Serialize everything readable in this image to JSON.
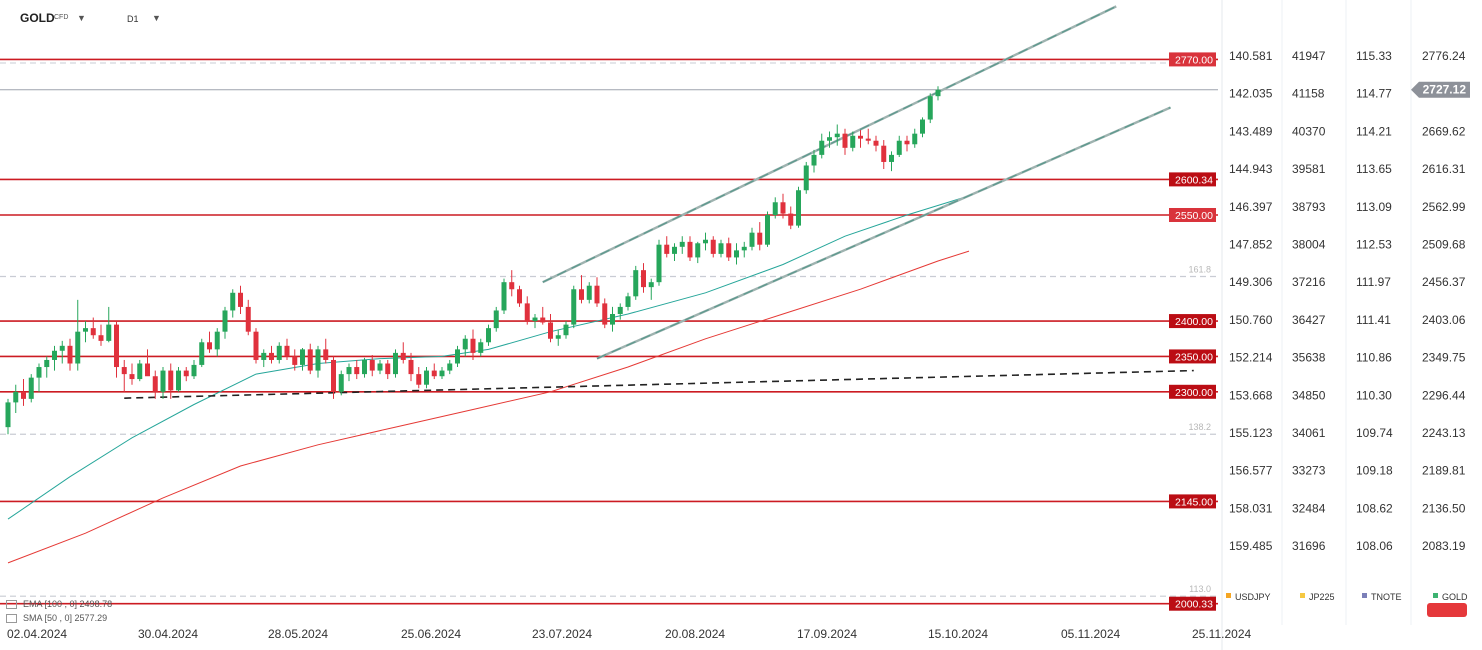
{
  "header": {
    "symbol": "GOLD",
    "symbol_sub": "CFD",
    "timeframe": "D1",
    "dropdown_icon": "chevron-down-icon"
  },
  "indicators": [
    {
      "label": "EMA [100 , 0]",
      "value": "2498.78",
      "color": "#e53935"
    },
    {
      "label": "SMA [50 , 0]",
      "value": "2577.29",
      "color": "#26a69a"
    }
  ],
  "price_axis": {
    "usdjpy": [
      "140.581",
      "142.035",
      "143.489",
      "144.943",
      "146.397",
      "147.852",
      "149.306",
      "150.760",
      "152.214",
      "153.668",
      "155.123",
      "156.577",
      "158.031",
      "159.485"
    ],
    "jp225": [
      "41947",
      "41158",
      "40370",
      "39581",
      "38793",
      "38004",
      "37216",
      "36427",
      "35638",
      "34850",
      "34061",
      "33273",
      "32484",
      "31696"
    ],
    "tnote": [
      "115.33",
      "114.77",
      "114.21",
      "113.65",
      "113.09",
      "112.53",
      "111.97",
      "111.41",
      "110.86",
      "110.30",
      "109.74",
      "109.18",
      "108.62",
      "108.06"
    ],
    "gold": [
      "2776.24",
      "2722.93",
      "2669.62",
      "2616.31",
      "2562.99",
      "2509.68",
      "2456.37",
      "2403.06",
      "2349.75",
      "2296.44",
      "2243.13",
      "2189.81",
      "2136.50",
      "2083.19"
    ],
    "current_price": "2727.12"
  },
  "levels": [
    {
      "label": "2770.00",
      "value": 2770
    },
    {
      "label": "2600.34",
      "value": 2600.34
    },
    {
      "label": "2550.00",
      "value": 2550
    },
    {
      "label": "2400.00",
      "value": 2400
    },
    {
      "label": "2350.00",
      "value": 2350
    },
    {
      "label": "2300.00",
      "value": 2300
    },
    {
      "label": "2145.00",
      "value": 2145
    },
    {
      "label": "2000.33",
      "value": 2000.33
    }
  ],
  "fib_levels": [
    {
      "label": "161.8",
      "value": 2463
    },
    {
      "label": "138.2",
      "value": 2240
    },
    {
      "label": "113.0",
      "value": 2011
    }
  ],
  "legend": [
    {
      "name": "USDJPY",
      "color": "#f5a623"
    },
    {
      "name": "JP225",
      "color": "#f5c842"
    },
    {
      "name": "TNOTE",
      "color": "#7b7fb8"
    },
    {
      "name": "GOLD",
      "color": "#3cb371"
    }
  ],
  "chart_data": {
    "type": "candlestick",
    "symbol": "GOLD",
    "timeframe": "D1",
    "x_tick_labels": [
      "02.04.2024",
      "30.04.2024",
      "28.05.2024",
      "25.06.2024",
      "23.07.2024",
      "20.08.2024",
      "17.09.2024",
      "15.10.2024",
      "05.11.2024",
      "25.11.2024"
    ],
    "y_range": [
      1990,
      2795
    ],
    "up_color": "#26a65b",
    "down_color": "#e0313d",
    "ohlc": [
      [
        2250,
        2290,
        2240,
        2285
      ],
      [
        2285,
        2310,
        2270,
        2300
      ],
      [
        2300,
        2318,
        2280,
        2290
      ],
      [
        2290,
        2325,
        2285,
        2320
      ],
      [
        2320,
        2340,
        2300,
        2335
      ],
      [
        2335,
        2350,
        2320,
        2345
      ],
      [
        2345,
        2365,
        2330,
        2358
      ],
      [
        2358,
        2372,
        2340,
        2365
      ],
      [
        2365,
        2375,
        2330,
        2340
      ],
      [
        2340,
        2430,
        2330,
        2385
      ],
      [
        2385,
        2400,
        2370,
        2390
      ],
      [
        2390,
        2405,
        2375,
        2380
      ],
      [
        2380,
        2395,
        2365,
        2372
      ],
      [
        2372,
        2420,
        2370,
        2395
      ],
      [
        2395,
        2400,
        2320,
        2335
      ],
      [
        2335,
        2345,
        2300,
        2325
      ],
      [
        2325,
        2340,
        2310,
        2318
      ],
      [
        2318,
        2345,
        2315,
        2340
      ],
      [
        2340,
        2360,
        2325,
        2322
      ],
      [
        2322,
        2330,
        2290,
        2300
      ],
      [
        2300,
        2335,
        2290,
        2330
      ],
      [
        2330,
        2340,
        2290,
        2302
      ],
      [
        2302,
        2335,
        2300,
        2330
      ],
      [
        2330,
        2335,
        2315,
        2322
      ],
      [
        2322,
        2345,
        2318,
        2338
      ],
      [
        2338,
        2375,
        2335,
        2370
      ],
      [
        2370,
        2385,
        2355,
        2360
      ],
      [
        2360,
        2390,
        2350,
        2385
      ],
      [
        2385,
        2420,
        2375,
        2415
      ],
      [
        2415,
        2445,
        2405,
        2440
      ],
      [
        2440,
        2450,
        2410,
        2420
      ],
      [
        2420,
        2430,
        2380,
        2385
      ],
      [
        2385,
        2390,
        2340,
        2345
      ],
      [
        2345,
        2360,
        2335,
        2355
      ],
      [
        2355,
        2365,
        2340,
        2345
      ],
      [
        2345,
        2370,
        2340,
        2365
      ],
      [
        2365,
        2375,
        2345,
        2350
      ],
      [
        2350,
        2360,
        2330,
        2338
      ],
      [
        2338,
        2362,
        2330,
        2360
      ],
      [
        2360,
        2368,
        2325,
        2330
      ],
      [
        2330,
        2365,
        2320,
        2360
      ],
      [
        2360,
        2375,
        2340,
        2345
      ],
      [
        2345,
        2350,
        2290,
        2300
      ],
      [
        2300,
        2330,
        2295,
        2325
      ],
      [
        2325,
        2340,
        2315,
        2335
      ],
      [
        2335,
        2345,
        2318,
        2325
      ],
      [
        2325,
        2348,
        2320,
        2345
      ],
      [
        2345,
        2352,
        2322,
        2330
      ],
      [
        2330,
        2345,
        2325,
        2340
      ],
      [
        2340,
        2345,
        2318,
        2325
      ],
      [
        2325,
        2360,
        2320,
        2355
      ],
      [
        2355,
        2370,
        2340,
        2345
      ],
      [
        2345,
        2355,
        2315,
        2325
      ],
      [
        2325,
        2335,
        2305,
        2310
      ],
      [
        2310,
        2335,
        2305,
        2330
      ],
      [
        2330,
        2340,
        2318,
        2322
      ],
      [
        2322,
        2335,
        2318,
        2330
      ],
      [
        2330,
        2345,
        2325,
        2340
      ],
      [
        2340,
        2365,
        2335,
        2360
      ],
      [
        2360,
        2380,
        2350,
        2375
      ],
      [
        2375,
        2388,
        2345,
        2355
      ],
      [
        2355,
        2375,
        2350,
        2370
      ],
      [
        2370,
        2395,
        2365,
        2390
      ],
      [
        2390,
        2420,
        2385,
        2415
      ],
      [
        2415,
        2460,
        2410,
        2455
      ],
      [
        2455,
        2472,
        2435,
        2445
      ],
      [
        2445,
        2450,
        2420,
        2425
      ],
      [
        2425,
        2435,
        2395,
        2400
      ],
      [
        2400,
        2410,
        2390,
        2405
      ],
      [
        2405,
        2420,
        2395,
        2398
      ],
      [
        2398,
        2410,
        2370,
        2375
      ],
      [
        2375,
        2388,
        2365,
        2380
      ],
      [
        2380,
        2400,
        2375,
        2395
      ],
      [
        2395,
        2450,
        2390,
        2445
      ],
      [
        2445,
        2465,
        2425,
        2430
      ],
      [
        2430,
        2455,
        2425,
        2450
      ],
      [
        2450,
        2462,
        2420,
        2425
      ],
      [
        2425,
        2432,
        2390,
        2395
      ],
      [
        2395,
        2420,
        2385,
        2410
      ],
      [
        2410,
        2425,
        2402,
        2420
      ],
      [
        2420,
        2440,
        2415,
        2435
      ],
      [
        2435,
        2478,
        2430,
        2472
      ],
      [
        2472,
        2482,
        2440,
        2448
      ],
      [
        2448,
        2460,
        2430,
        2455
      ],
      [
        2455,
        2515,
        2450,
        2508
      ],
      [
        2508,
        2520,
        2490,
        2495
      ],
      [
        2495,
        2510,
        2485,
        2505
      ],
      [
        2505,
        2520,
        2495,
        2512
      ],
      [
        2512,
        2520,
        2485,
        2490
      ],
      [
        2490,
        2512,
        2482,
        2510
      ],
      [
        2510,
        2525,
        2500,
        2515
      ],
      [
        2515,
        2520,
        2490,
        2495
      ],
      [
        2495,
        2515,
        2490,
        2510
      ],
      [
        2510,
        2518,
        2485,
        2490
      ],
      [
        2490,
        2510,
        2480,
        2500
      ],
      [
        2500,
        2512,
        2490,
        2505
      ],
      [
        2505,
        2532,
        2500,
        2525
      ],
      [
        2525,
        2540,
        2500,
        2508
      ],
      [
        2508,
        2555,
        2505,
        2550
      ],
      [
        2550,
        2575,
        2545,
        2568
      ],
      [
        2568,
        2580,
        2545,
        2552
      ],
      [
        2552,
        2562,
        2530,
        2535
      ],
      [
        2535,
        2590,
        2532,
        2585
      ],
      [
        2585,
        2625,
        2580,
        2620
      ],
      [
        2620,
        2642,
        2610,
        2635
      ],
      [
        2635,
        2665,
        2630,
        2655
      ],
      [
        2655,
        2668,
        2645,
        2660
      ],
      [
        2660,
        2678,
        2648,
        2665
      ],
      [
        2665,
        2672,
        2635,
        2645
      ],
      [
        2645,
        2668,
        2640,
        2662
      ],
      [
        2662,
        2670,
        2645,
        2658
      ],
      [
        2658,
        2672,
        2650,
        2655
      ],
      [
        2655,
        2662,
        2640,
        2648
      ],
      [
        2648,
        2656,
        2615,
        2625
      ],
      [
        2625,
        2640,
        2612,
        2635
      ],
      [
        2635,
        2662,
        2632,
        2655
      ],
      [
        2655,
        2662,
        2640,
        2650
      ],
      [
        2650,
        2672,
        2645,
        2665
      ],
      [
        2665,
        2688,
        2660,
        2685
      ],
      [
        2685,
        2722,
        2680,
        2718
      ],
      [
        2718,
        2732,
        2712,
        2727
      ]
    ],
    "moving_averages": [
      {
        "label": "EMA [100 , 0]",
        "last": 2498.78,
        "color": "#e53935",
        "points": [
          [
            0,
            2058
          ],
          [
            10,
            2100
          ],
          [
            20,
            2150
          ],
          [
            30,
            2195
          ],
          [
            40,
            2225
          ],
          [
            50,
            2250
          ],
          [
            60,
            2275
          ],
          [
            70,
            2300
          ],
          [
            80,
            2335
          ],
          [
            90,
            2375
          ],
          [
            100,
            2410
          ],
          [
            110,
            2445
          ],
          [
            120,
            2485
          ],
          [
            124,
            2499
          ]
        ]
      },
      {
        "label": "SMA [50 , 0]",
        "last": 2577.29,
        "color": "#26a69a",
        "points": [
          [
            0,
            2120
          ],
          [
            8,
            2180
          ],
          [
            16,
            2235
          ],
          [
            24,
            2282
          ],
          [
            32,
            2325
          ],
          [
            40,
            2340
          ],
          [
            48,
            2347
          ],
          [
            56,
            2350
          ],
          [
            62,
            2360
          ],
          [
            70,
            2385
          ],
          [
            80,
            2410
          ],
          [
            90,
            2440
          ],
          [
            100,
            2480
          ],
          [
            108,
            2520
          ],
          [
            116,
            2550
          ],
          [
            124,
            2577
          ]
        ]
      }
    ],
    "channel_lines": [
      {
        "from": [
          69,
          2455
        ],
        "to": [
          143,
          2845
        ],
        "color": "#7aa8a0"
      },
      {
        "from": [
          76,
          2347
        ],
        "to": [
          150,
          2702
        ],
        "color": "#7aa8a0"
      }
    ],
    "trend_line": {
      "from": [
        15,
        2291
      ],
      "to": [
        153,
        2330
      ],
      "color": "#222222"
    },
    "secondary_axes": [
      "USDJPY",
      "JP225",
      "TNOTE"
    ]
  }
}
